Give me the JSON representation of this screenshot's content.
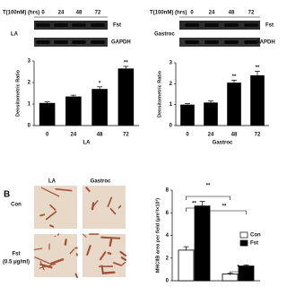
{
  "blots": [
    {
      "header": "T(100nM) (hrs)",
      "times": [
        "0",
        "24",
        "48",
        "72"
      ],
      "tissue": "LA",
      "rows": [
        "Fst",
        "GAPDH"
      ]
    },
    {
      "header": "T(100nM) (hrs)",
      "times": [
        "0",
        "24",
        "48",
        "72"
      ],
      "tissue": "Gastroc",
      "rows": [
        "Fst",
        "GAPDH"
      ]
    }
  ],
  "panel_b": {
    "label": "B",
    "columns": [
      "LA",
      "Gastroc"
    ],
    "rows": [
      "Con",
      "Fst",
      "(0.5 μg/ml)"
    ]
  },
  "chart_data": [
    {
      "type": "bar",
      "ylabel": "Densitometric Ratio",
      "xlabel": "LA",
      "categories": [
        "0",
        "24",
        "48",
        "72"
      ],
      "values": [
        1.05,
        1.35,
        1.7,
        2.65
      ],
      "errors": [
        0.05,
        0.06,
        0.1,
        0.1
      ],
      "color": "#000000",
      "ylim": [
        0,
        3
      ],
      "yticks": [
        0,
        1,
        2,
        3
      ],
      "annotations": [
        "*",
        "**"
      ]
    },
    {
      "type": "bar",
      "ylabel": "Densitometric Ratio",
      "xlabel": "Gastroc",
      "categories": [
        "0",
        "24",
        "48",
        "72"
      ],
      "values": [
        1.0,
        1.1,
        2.05,
        2.4
      ],
      "errors": [
        0.05,
        0.08,
        0.12,
        0.2
      ],
      "color": "#000000",
      "ylim": [
        0,
        3
      ],
      "yticks": [
        0,
        1,
        2,
        3
      ],
      "annotations": [
        "**",
        "**"
      ]
    },
    {
      "type": "grouped-bar",
      "ylabel": "MHCIIB area per field (μm²/×10³)",
      "categories": [
        null,
        null
      ],
      "series": [
        {
          "name": "Con",
          "color": "#ffffff",
          "values": [
            2.7,
            0.6
          ],
          "errors": [
            0.3,
            0.05
          ]
        },
        {
          "name": "Fst",
          "color": "#000000",
          "values": [
            6.6,
            1.3
          ],
          "errors": [
            0.4,
            0.1
          ]
        }
      ],
      "ylim": [
        0,
        8
      ],
      "yticks": [
        0,
        2,
        4,
        6,
        8
      ],
      "annotations": [
        "**",
        "**",
        "**",
        "*"
      ],
      "legend": "right"
    }
  ]
}
